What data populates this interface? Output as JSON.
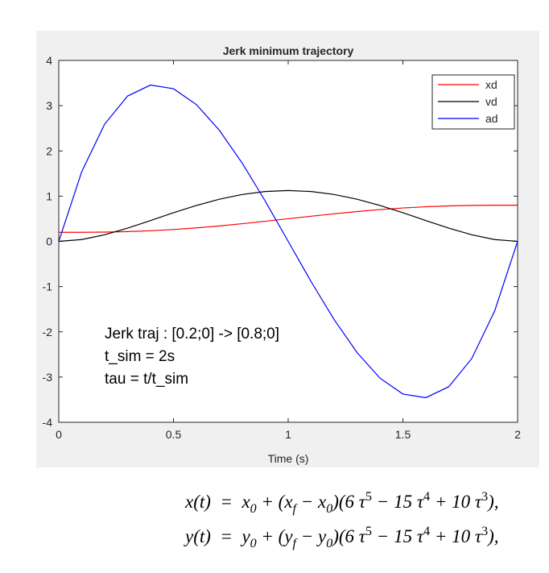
{
  "chart_data": {
    "type": "line",
    "title": "Jerk minimum trajectory",
    "x_label": "Time (s)",
    "x": [
      0,
      0.1,
      0.2,
      0.3,
      0.4,
      0.5,
      0.6,
      0.7,
      0.8,
      0.9,
      1,
      1.1,
      1.2,
      1.3,
      1.4,
      1.5,
      1.6,
      1.7,
      1.8,
      1.9,
      2
    ],
    "series": [
      {
        "name": "xd",
        "color": "#ff0000",
        "values": [
          0.2,
          0.2007,
          0.2051,
          0.216,
          0.2348,
          0.2621,
          0.2978,
          0.3411,
          0.3905,
          0.4441,
          0.5,
          0.5559,
          0.6095,
          0.6589,
          0.7022,
          0.7379,
          0.7652,
          0.784,
          0.7949,
          0.7993,
          0.8
        ]
      },
      {
        "name": "vd",
        "color": "#000000",
        "values": [
          0,
          0.0406,
          0.1458,
          0.2926,
          0.4608,
          0.6328,
          0.7938,
          0.9316,
          1.0368,
          1.1026,
          1.125,
          1.1026,
          1.0368,
          0.9316,
          0.7938,
          0.6328,
          0.4608,
          0.2926,
          0.1458,
          0.0406,
          0
        ]
      },
      {
        "name": "ad",
        "color": "#0000ff",
        "values": [
          0,
          1.539,
          2.592,
          3.213,
          3.456,
          3.375,
          3.024,
          2.457,
          1.728,
          0.891,
          0,
          -0.891,
          -1.728,
          -2.457,
          -3.024,
          -3.375,
          -3.456,
          -3.213,
          -2.592,
          -1.539,
          0
        ]
      }
    ],
    "xlim": [
      0,
      2
    ],
    "xticks": [
      0,
      0.5,
      1,
      1.5,
      2
    ],
    "ylim": [
      -4,
      4
    ],
    "yticks": [
      -4,
      -3,
      -2,
      -1,
      0,
      1,
      2,
      3,
      4
    ],
    "grid": false,
    "legend": "top-right",
    "annotations": [
      "Jerk traj : [0.2;0] -> [0.8;0]",
      "t_sim = 2s",
      "tau = t/t_sim"
    ]
  },
  "equations": [
    [
      {
        "text": "x(t)  =  x"
      },
      {
        "sub": "0"
      },
      {
        "text": " + (x"
      },
      {
        "sub": "f"
      },
      {
        "text": " − x"
      },
      {
        "sub": "0"
      },
      {
        "text": ")(6 τ"
      },
      {
        "sup": "5"
      },
      {
        "text": " − 15 τ"
      },
      {
        "sup": "4"
      },
      {
        "text": " + 10 τ"
      },
      {
        "sup": "3"
      },
      {
        "text": "),"
      }
    ],
    [
      {
        "text": "y(t)  =  y"
      },
      {
        "sub": "0"
      },
      {
        "text": " + (y"
      },
      {
        "sub": "f"
      },
      {
        "text": " − y"
      },
      {
        "sub": "0"
      },
      {
        "text": ")(6 τ"
      },
      {
        "sup": "5"
      },
      {
        "text": " − 15 τ"
      },
      {
        "sup": "4"
      },
      {
        "text": " + 10 τ"
      },
      {
        "sup": "3"
      },
      {
        "text": "),"
      }
    ]
  ]
}
